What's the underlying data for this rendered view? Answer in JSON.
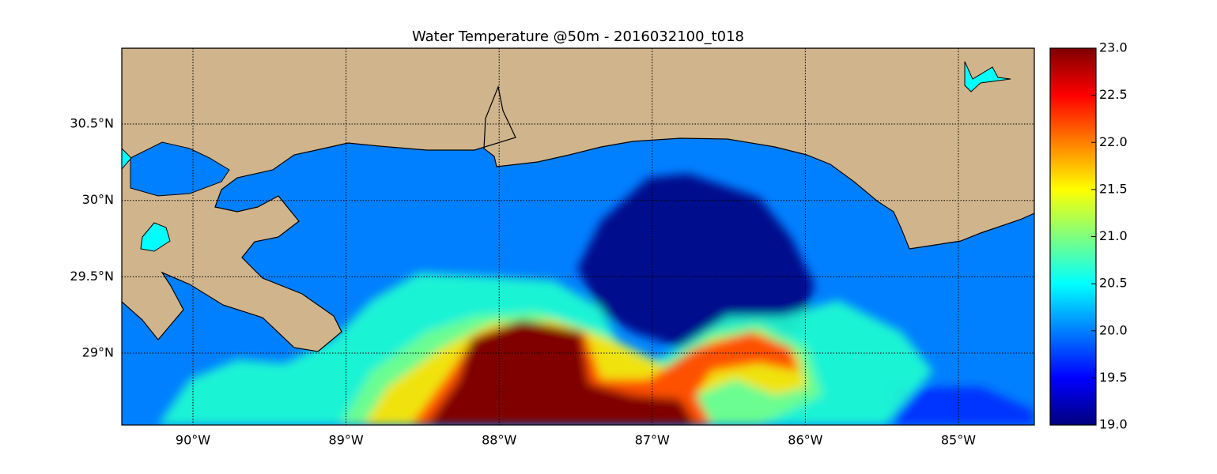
{
  "chart_data": {
    "type": "heatmap-map",
    "title": "Water Temperature @50m - 2016032100_t018",
    "xlim": [
      -90.465,
      -84.504
    ],
    "ylim": [
      28.529,
      30.997
    ],
    "xticks": [
      {
        "value": -90,
        "label": "90°W"
      },
      {
        "value": -89,
        "label": "89°W"
      },
      {
        "value": -88,
        "label": "88°W"
      },
      {
        "value": -87,
        "label": "87°W"
      },
      {
        "value": -86,
        "label": "86°W"
      },
      {
        "value": -85,
        "label": "85°W"
      }
    ],
    "yticks": [
      {
        "value": 29,
        "label": "29°N"
      },
      {
        "value": 29.5,
        "label": "29.5°N"
      },
      {
        "value": 30,
        "label": "30°N"
      },
      {
        "value": 30.5,
        "label": "30.5°N"
      }
    ],
    "grid": true,
    "colormap": "jet",
    "clim": [
      19,
      23
    ],
    "cticks": [
      {
        "value": 19,
        "label": "19.0"
      },
      {
        "value": 19.5,
        "label": "19.5"
      },
      {
        "value": 20,
        "label": "20.0"
      },
      {
        "value": 20.5,
        "label": "20.5"
      },
      {
        "value": 21,
        "label": "21.0"
      },
      {
        "value": 21.5,
        "label": "21.5"
      },
      {
        "value": 22,
        "label": "22.0"
      },
      {
        "value": 22.5,
        "label": "22.5"
      },
      {
        "value": 23,
        "label": "23.0"
      }
    ]
  }
}
